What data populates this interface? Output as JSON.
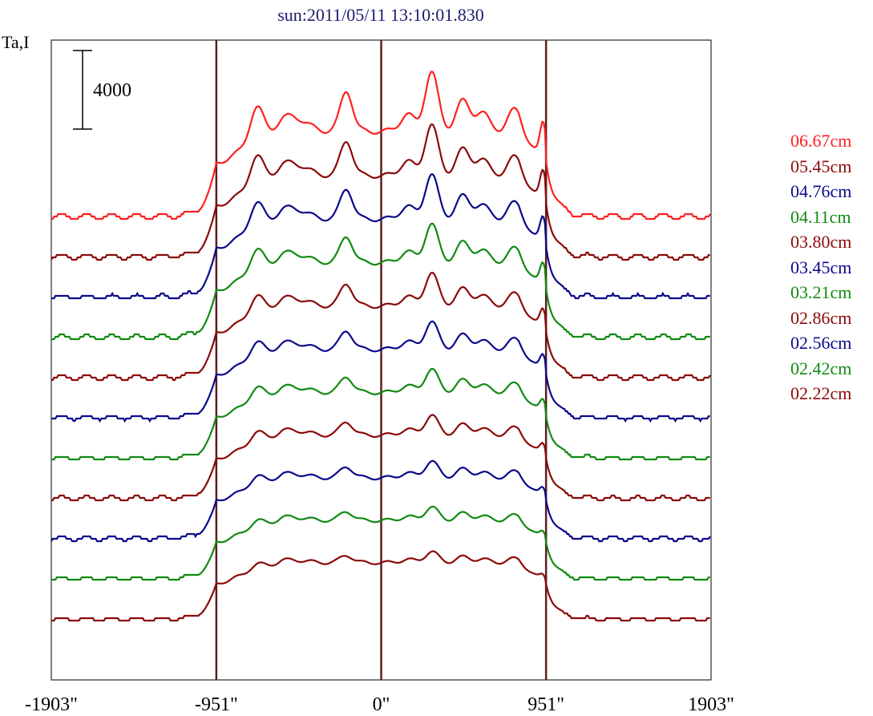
{
  "title": "sun:2011/05/11 13:10:01.830",
  "ylabel": "Ta,I",
  "scale_bar_label": "4000",
  "colors": {
    "frame": "#000000",
    "limb_line": "#5a1e1e",
    "red": "#ff2020",
    "maroon": "#8b0a0a",
    "navy": "#0a0a8b",
    "green": "#118a11"
  },
  "chart_data": {
    "type": "line",
    "title": "sun:2011/05/11 13:10:01.830",
    "ylabel": "Ta,I",
    "xlabel": "",
    "x_ticks": [
      "-1903\"",
      "-951\"",
      "0\"",
      "951\"",
      "1903\""
    ],
    "x_tick_values": [
      -1903,
      -951,
      0,
      951,
      1903
    ],
    "xlim": [
      -1903,
      1903
    ],
    "vertical_lines": [
      -951,
      0,
      951
    ],
    "scale_bar": 4000,
    "legend_position": "right",
    "grid": false,
    "series": [
      {
        "name": "06.67cm",
        "color": "red",
        "amplitude": 1.0
      },
      {
        "name": "05.45cm",
        "color": "maroon",
        "amplitude": 0.9
      },
      {
        "name": "04.76cm",
        "color": "navy",
        "amplitude": 0.82
      },
      {
        "name": "04.11cm",
        "color": "green",
        "amplitude": 0.74
      },
      {
        "name": "03.80cm",
        "color": "maroon",
        "amplitude": 0.66
      },
      {
        "name": "03.45cm",
        "color": "navy",
        "amplitude": 0.58
      },
      {
        "name": "03.21cm",
        "color": "green",
        "amplitude": 0.51
      },
      {
        "name": "02.86cm",
        "color": "maroon",
        "amplitude": 0.45
      },
      {
        "name": "02.56cm",
        "color": "navy",
        "amplitude": 0.39
      },
      {
        "name": "02.42cm",
        "color": "green",
        "amplitude": 0.33
      },
      {
        "name": "02.22cm",
        "color": "maroon",
        "amplitude": 0.28
      }
    ]
  }
}
